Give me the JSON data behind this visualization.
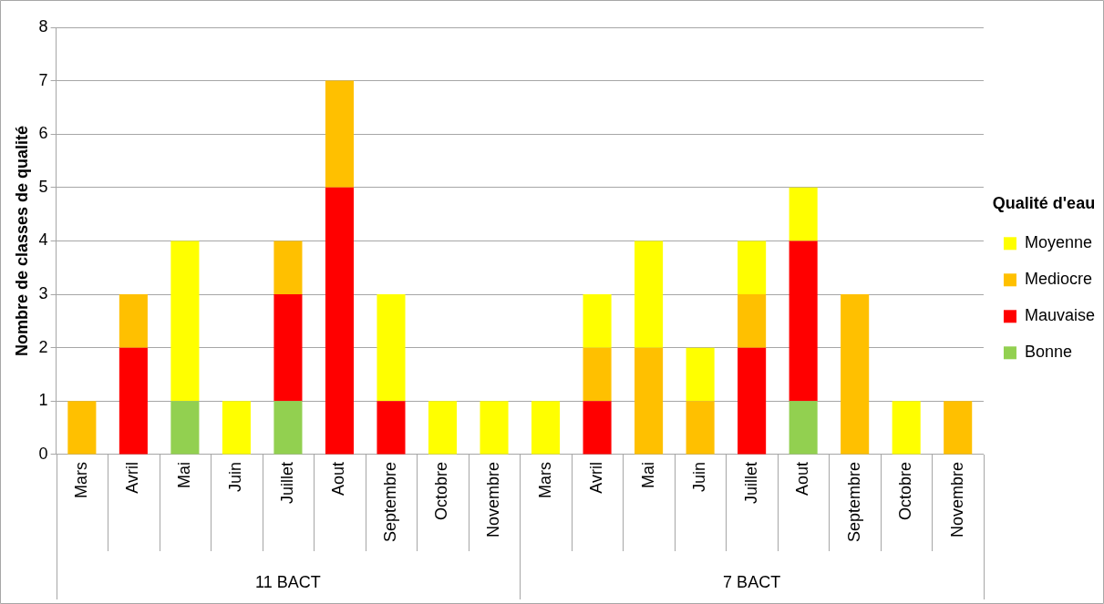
{
  "chart_data": {
    "type": "bar",
    "stacked": true,
    "ylabel": "Nombre de classes de qualité",
    "legend_title": "Qualité d'eau",
    "legend": "right",
    "grid": "y",
    "categories": [
      "Mars",
      "Avril",
      "Mai",
      "Juin",
      "Juillet",
      "Aout",
      "Septembre",
      "Octobre",
      "Novembre",
      "Mars",
      "Avril",
      "Mai",
      "Juin",
      "Juillet",
      "Aout",
      "Septembre",
      "Octobre",
      "Novembre"
    ],
    "annotations": [
      "11 BACT",
      "7 BACT"
    ],
    "ylim": [
      0,
      8
    ],
    "yticks": [
      0,
      1,
      2,
      3,
      4,
      5,
      6,
      7,
      8
    ],
    "series": [
      {
        "name": "Bonne",
        "color": "#92d050",
        "values": [
          null,
          null,
          1,
          null,
          1,
          null,
          null,
          null,
          null,
          null,
          null,
          null,
          null,
          null,
          1,
          null,
          null,
          null
        ]
      },
      {
        "name": "Mauvaise",
        "color": "#ff0000",
        "values": [
          null,
          2,
          null,
          null,
          2,
          5,
          1,
          null,
          null,
          null,
          1,
          null,
          null,
          2,
          3,
          null,
          null,
          null
        ]
      },
      {
        "name": "Mediocre",
        "color": "#ffc000",
        "values": [
          1,
          1,
          null,
          null,
          1,
          2,
          null,
          null,
          null,
          null,
          1,
          2,
          1,
          1,
          null,
          3,
          null,
          1
        ]
      },
      {
        "name": "Moyenne",
        "color": "#ffff00",
        "values": [
          null,
          null,
          3,
          1,
          null,
          null,
          2,
          1,
          1,
          1,
          1,
          2,
          1,
          1,
          1,
          null,
          1,
          null
        ]
      }
    ]
  }
}
